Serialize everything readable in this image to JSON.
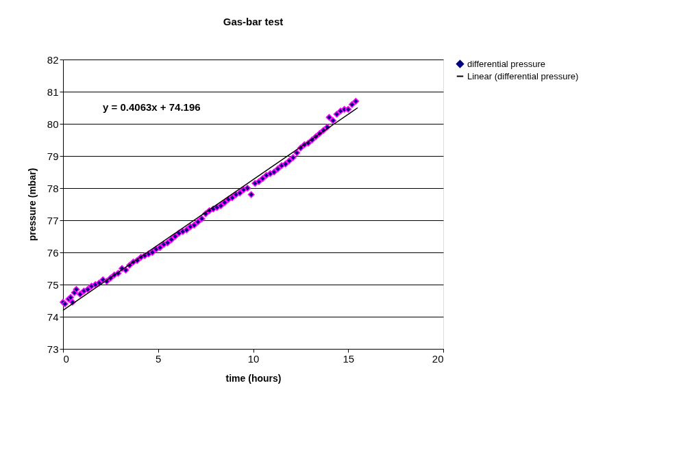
{
  "chart_data": {
    "type": "scatter",
    "title": "Gas-bar test",
    "xlabel": "time (hours)",
    "ylabel": "pressure (mbar)",
    "xlim": [
      0,
      20
    ],
    "xticks": [
      0,
      5,
      10,
      15,
      20
    ],
    "ylim": [
      73,
      82
    ],
    "yticks": [
      73,
      74,
      75,
      76,
      77,
      78,
      79,
      80,
      81,
      82
    ],
    "grid": "y",
    "legend": "right",
    "annotations": [
      "y = 0.4063x + 74.196"
    ],
    "series": [
      {
        "name": "differential pressure",
        "color": "#000080",
        "marker": "diamond",
        "x": [
          0,
          0.1,
          0.3,
          0.4,
          0.5,
          0.6,
          0.7,
          0.9,
          1.1,
          1.3,
          1.5,
          1.7,
          1.9,
          2.1,
          2.3,
          2.5,
          2.7,
          2.9,
          3.1,
          3.3,
          3.5,
          3.7,
          3.9,
          4.1,
          4.3,
          4.5,
          4.7,
          4.9,
          5.1,
          5.3,
          5.5,
          5.7,
          5.9,
          6.1,
          6.3,
          6.5,
          6.7,
          6.9,
          7.1,
          7.3,
          7.5,
          7.7,
          7.9,
          8.1,
          8.3,
          8.5,
          8.7,
          8.9,
          9.1,
          9.3,
          9.5,
          9.7,
          9.9,
          10.1,
          10.3,
          10.5,
          10.7,
          10.9,
          11.1,
          11.3,
          11.5,
          11.7,
          11.9,
          12.1,
          12.3,
          12.5,
          12.7,
          12.9,
          13.1,
          13.3,
          13.5,
          13.7,
          13.9,
          14.0,
          14.2,
          14.4,
          14.6,
          14.8,
          15.0,
          15.2,
          15.4
        ],
        "values": [
          74.45,
          74.4,
          74.55,
          74.6,
          74.45,
          74.75,
          74.85,
          74.7,
          74.8,
          74.85,
          74.95,
          75.0,
          75.05,
          75.15,
          75.1,
          75.2,
          75.3,
          75.35,
          75.5,
          75.45,
          75.6,
          75.7,
          75.75,
          75.85,
          75.9,
          75.95,
          76.0,
          76.1,
          76.15,
          76.25,
          76.3,
          76.4,
          76.5,
          76.6,
          76.65,
          76.7,
          76.8,
          76.85,
          76.95,
          77.05,
          77.2,
          77.3,
          77.35,
          77.4,
          77.45,
          77.55,
          77.65,
          77.7,
          77.8,
          77.85,
          77.95,
          78.0,
          77.8,
          78.15,
          78.2,
          78.3,
          78.4,
          78.45,
          78.5,
          78.6,
          78.7,
          78.75,
          78.85,
          78.95,
          79.1,
          79.25,
          79.35,
          79.4,
          79.5,
          79.6,
          79.7,
          79.8,
          79.9,
          80.2,
          80.1,
          80.3,
          80.4,
          80.45,
          80.45,
          80.6,
          80.7
        ]
      },
      {
        "name": "Linear (differential pressure)",
        "color": "#000000",
        "type": "line",
        "marker": "none",
        "x": [
          0,
          15.5
        ],
        "values": [
          74.2,
          80.5
        ]
      }
    ]
  }
}
